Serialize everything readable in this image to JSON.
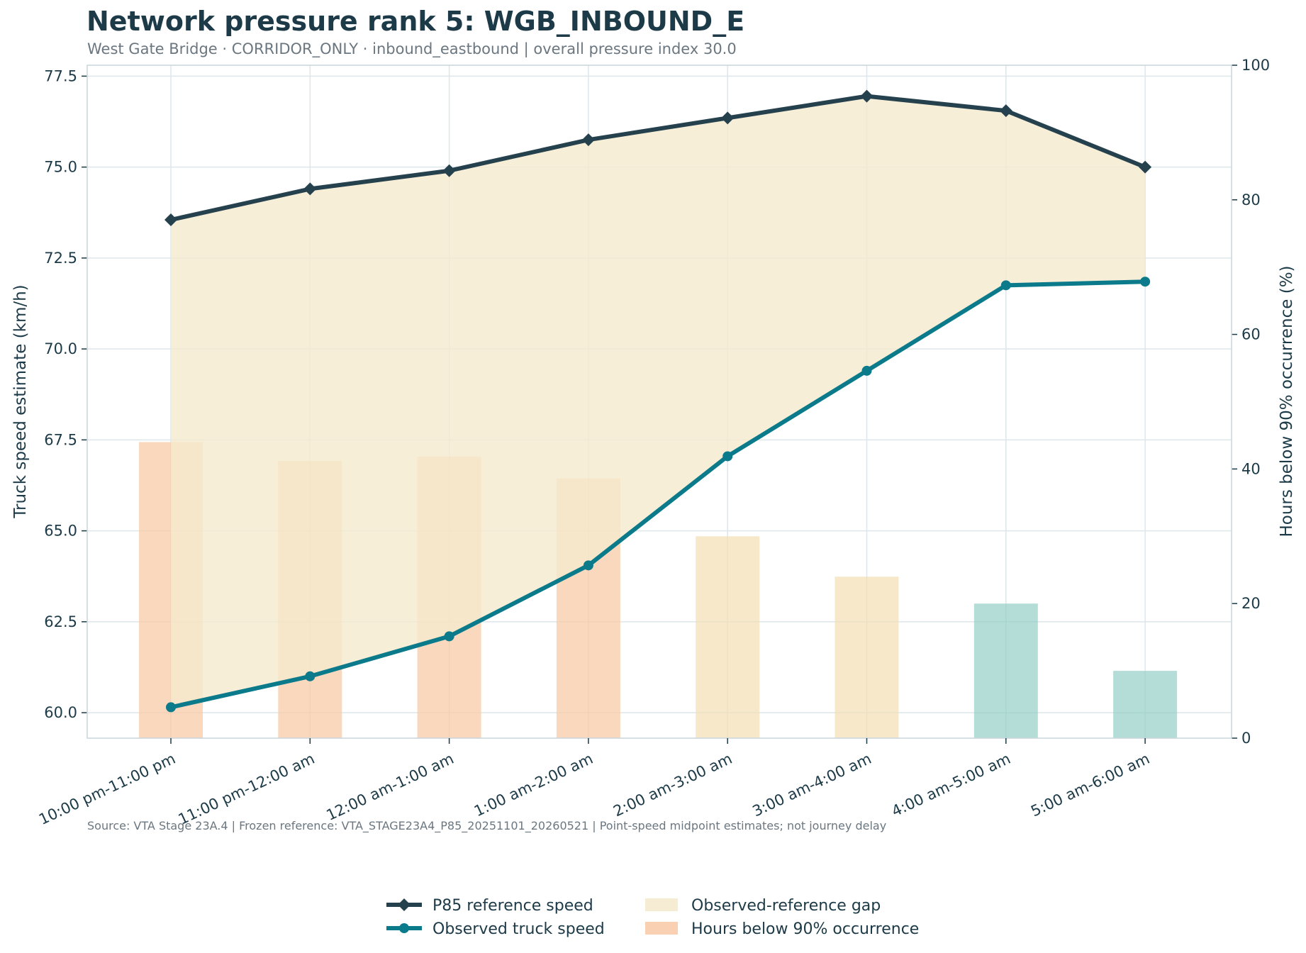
{
  "title": "Network pressure rank 5: WGB_INBOUND_E",
  "subtitle": "West Gate Bridge · CORRIDOR_ONLY · inbound_eastbound | overall pressure index 30.0",
  "source_note": "Source: VTA Stage 23A.4 | Frozen reference: VTA_STAGE23A4_P85_20251101_20260521 | Point-speed midpoint estimates; not journey delay",
  "colors": {
    "p85": "#26414e",
    "observed": "#0b7a8a",
    "gap": "#f5e9cd",
    "bar_high": "#f8c9a4",
    "bar_mid": "#f2dfb4",
    "bar_low": "#8dcbc3",
    "grid": "#dde6ea"
  },
  "chart_data": {
    "type": "line",
    "categories": [
      "10:00 pm-11:00 pm",
      "11:00 pm-12:00 am",
      "12:00 am-1:00 am",
      "1:00 am-2:00 am",
      "2:00 am-3:00 am",
      "3:00 am-4:00 am",
      "4:00 am-5:00 am",
      "5:00 am-6:00 am"
    ],
    "ylabel": "Truck speed estimate (km/h)",
    "ylabel_right": "Hours below 90% occurrence (%)",
    "ylim": [
      59.3,
      77.8
    ],
    "y_ticks": [
      "60.0",
      "62.5",
      "65.0",
      "67.5",
      "70.0",
      "72.5",
      "75.0",
      "77.5"
    ],
    "ylim_right": [
      0,
      100
    ],
    "y_ticks_right": [
      "0",
      "20",
      "40",
      "60",
      "80",
      "100"
    ],
    "grid": true,
    "legend_position": "bottom-center",
    "series": [
      {
        "name": "P85 reference speed",
        "axis": "left",
        "marker": "diamond",
        "values": [
          73.55,
          74.4,
          74.9,
          75.75,
          76.35,
          76.95,
          76.55,
          75.0
        ]
      },
      {
        "name": "Observed truck speed",
        "axis": "left",
        "marker": "circle",
        "values": [
          60.15,
          61.0,
          62.1,
          64.05,
          67.05,
          69.4,
          71.75,
          71.85
        ]
      },
      {
        "name": "Observed-reference gap",
        "type": "area",
        "between": [
          "P85 reference speed",
          "Observed truck speed"
        ]
      },
      {
        "name": "Hours below 90% occurrence",
        "type": "bar",
        "axis": "right",
        "values": [
          44,
          41.2,
          41.8,
          38.6,
          30,
          24,
          20,
          10
        ]
      }
    ]
  },
  "legend": [
    {
      "label": "P85 reference speed",
      "kind": "line-diamond"
    },
    {
      "label": "Observed truck speed",
      "kind": "line-circle"
    },
    {
      "label": "Observed-reference gap",
      "kind": "patch-gap"
    },
    {
      "label": "Hours below 90% occurrence",
      "kind": "patch-bar"
    }
  ]
}
